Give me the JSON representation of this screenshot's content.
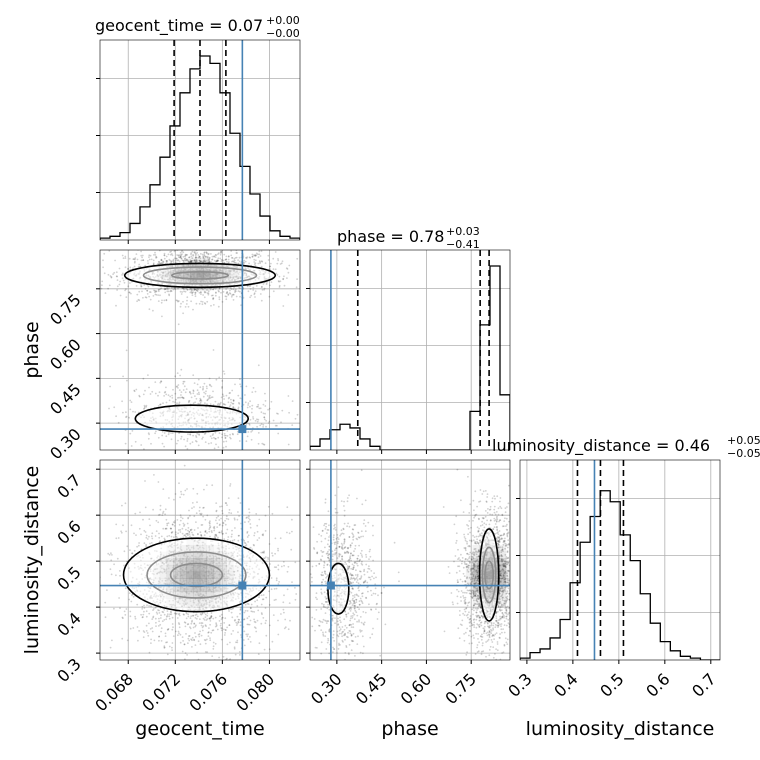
{
  "chart_data": {
    "type": "corner",
    "parameters": [
      "geocent_time",
      "phase",
      "luminosity_distance"
    ],
    "titles": [
      {
        "param": "geocent_time",
        "main": "geocent_time = 0.07",
        "sup": "+0.00",
        "sub": "−0.00"
      },
      {
        "param": "phase",
        "main": "phase = 0.78",
        "sup": "+0.03",
        "sub": "−0.41"
      },
      {
        "param": "luminosity_distance",
        "main": "luminosity_distance = 0.46",
        "sup": "+0.05",
        "sub": "−0.05"
      }
    ],
    "axis_labels": {
      "x": [
        "geocent_time",
        "phase",
        "luminosity_distance"
      ],
      "y": [
        "phase",
        "luminosity_distance"
      ]
    },
    "ranges": {
      "geocent_time": [
        0.0656,
        0.0826
      ],
      "phase": [
        0.21,
        0.88
      ],
      "luminosity_distance": [
        0.285,
        0.72
      ]
    },
    "ticks": {
      "geocent_time": [
        "0.068",
        "0.072",
        "0.076",
        "0.080"
      ],
      "phase": [
        "0.30",
        "0.45",
        "0.60",
        "0.75"
      ],
      "luminosity_distance": [
        "0.3",
        "0.4",
        "0.5",
        "0.6",
        "0.7"
      ]
    },
    "truths": {
      "geocent_time": 0.0777,
      "phase": 0.28,
      "luminosity_distance": 0.447
    },
    "quantiles": {
      "geocent_time": [
        0.0719,
        0.0741,
        0.0763
      ],
      "phase": [
        0.37,
        0.78,
        0.81
      ],
      "luminosity_distance": [
        0.41,
        0.46,
        0.51
      ]
    },
    "histograms": {
      "geocent_time": {
        "edges_start": 0.0656,
        "bin_width": 0.00085,
        "counts": [
          0.01,
          0.02,
          0.04,
          0.09,
          0.18,
          0.3,
          0.45,
          0.62,
          0.8,
          0.93,
          1.0,
          0.96,
          0.8,
          0.58,
          0.4,
          0.25,
          0.13,
          0.05,
          0.02,
          0.01
        ]
      },
      "phase": {
        "edges_start": 0.21,
        "bin_width": 0.0335,
        "counts": [
          0.02,
          0.06,
          0.11,
          0.14,
          0.12,
          0.06,
          0.02,
          0.0,
          0.0,
          0.0,
          0.0,
          0.0,
          0.0,
          0.0,
          0.0,
          0.0,
          0.21,
          0.68,
          1.0,
          0.3
        ]
      },
      "luminosity_distance": {
        "edges_start": 0.285,
        "bin_width": 0.0218,
        "counts": [
          0.01,
          0.04,
          0.06,
          0.12,
          0.22,
          0.42,
          0.64,
          0.78,
          0.92,
          0.86,
          0.68,
          0.54,
          0.36,
          0.2,
          0.1,
          0.05,
          0.02,
          0.01,
          0.0,
          0.0
        ]
      }
    },
    "grid": true,
    "series_colors": {
      "truth": "#4682b4",
      "contour": "#000000",
      "quantile": "#000000"
    }
  }
}
